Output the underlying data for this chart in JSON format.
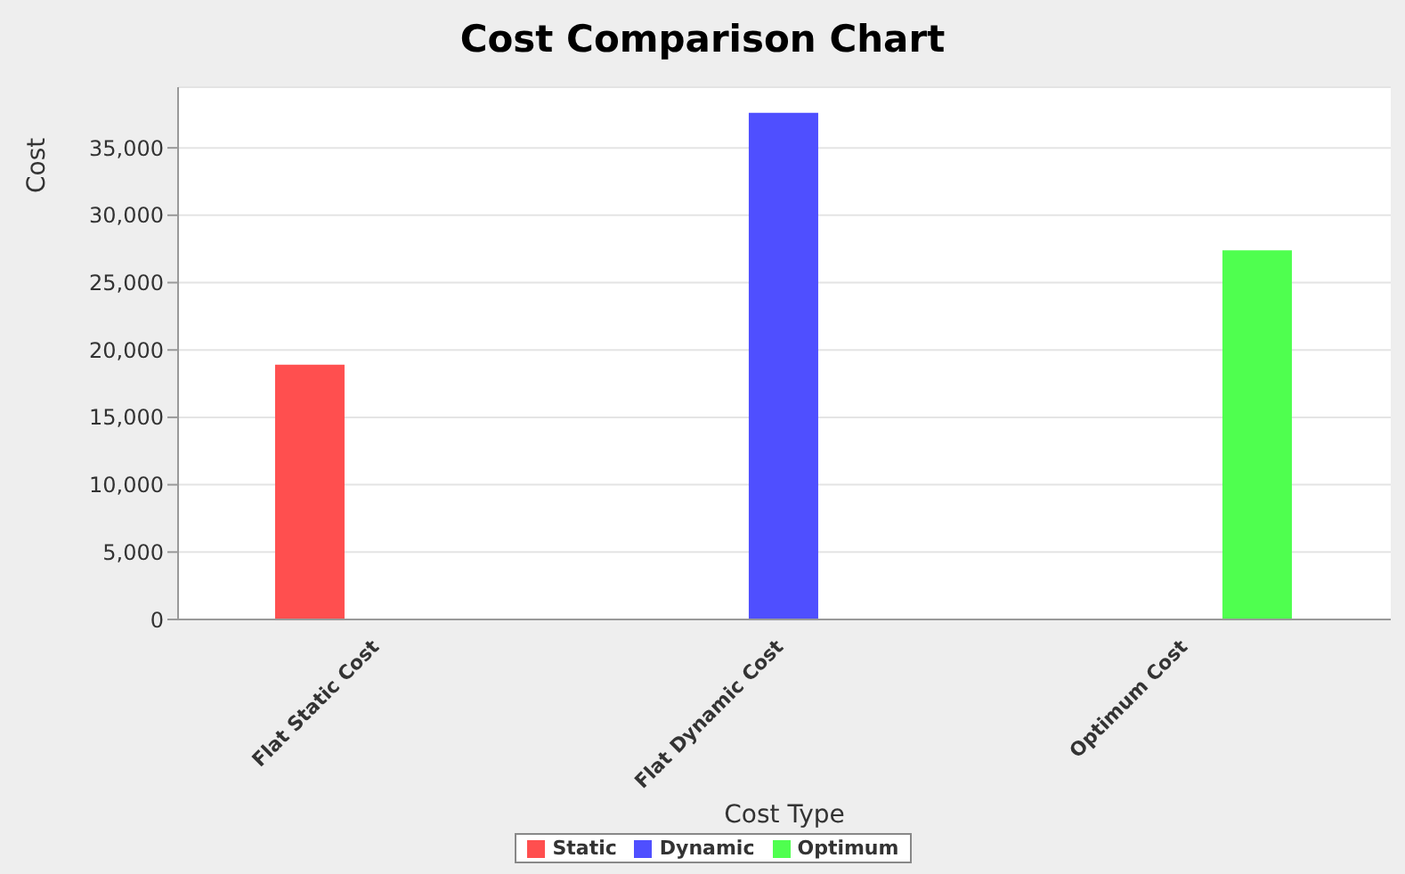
{
  "chart_data": {
    "type": "bar",
    "title": "Cost Comparison Chart",
    "xlabel": "Cost Type",
    "ylabel": "Cost",
    "categories": [
      "Flat Static Cost",
      "Flat Dynamic Cost",
      "Optimum Cost"
    ],
    "series": [
      {
        "name": "Static",
        "color": "#ff4f4f",
        "values": [
          18900,
          null,
          null
        ]
      },
      {
        "name": "Dynamic",
        "color": "#4f4fff",
        "values": [
          null,
          37600,
          null
        ]
      },
      {
        "name": "Optimum",
        "color": "#4fff4f",
        "values": [
          null,
          null,
          27400
        ]
      }
    ],
    "ylim": [
      0,
      39500
    ],
    "yticks": [
      {
        "value": 0,
        "label": "0"
      },
      {
        "value": 5000,
        "label": "5,000"
      },
      {
        "value": 10000,
        "label": "10,000"
      },
      {
        "value": 15000,
        "label": "15,000"
      },
      {
        "value": 20000,
        "label": "20,000"
      },
      {
        "value": 25000,
        "label": "25,000"
      },
      {
        "value": 30000,
        "label": "30,000"
      },
      {
        "value": 35000,
        "label": "35,000"
      }
    ],
    "grid": "y",
    "legend": "bottom"
  }
}
